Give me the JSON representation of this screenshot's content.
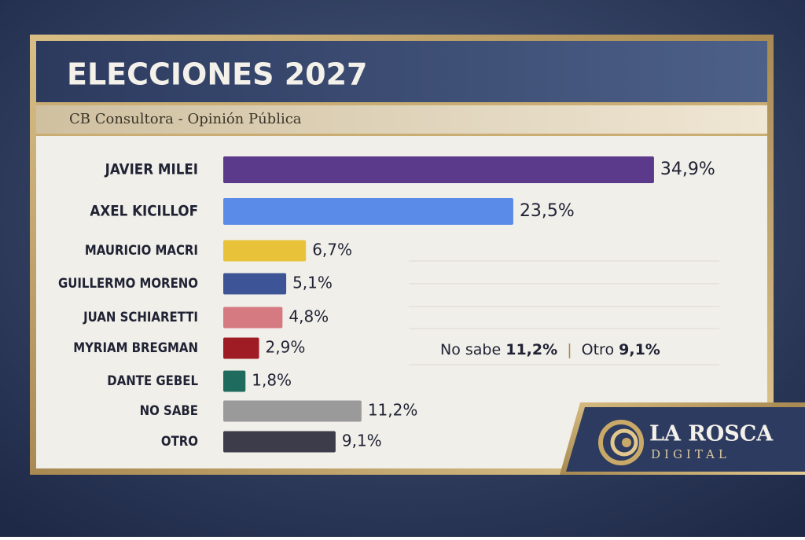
{
  "chart_data": {
    "type": "bar",
    "orientation": "horizontal",
    "title": "ELECCIONES 2027",
    "subtitle": "CB Consultora - Opinión Pública",
    "categories": [
      "JAVIER MILEI",
      "AXEL KICILLOF",
      "MAURICIO MACRI",
      "GUILLERMO MORENO",
      "JUAN SCHIARETTI",
      "MYRIAM BREGMAN",
      "DANTE GEBEL",
      "NO SABE",
      "OTRO"
    ],
    "values": [
      34.9,
      23.5,
      6.7,
      5.1,
      4.8,
      2.9,
      1.8,
      11.2,
      9.1
    ],
    "value_labels": [
      "34,9%",
      "23,5%",
      "6,7%",
      "5,1%",
      "4,8%",
      "2,9%",
      "1,8%",
      "11,2%",
      "9,1%"
    ],
    "colors": [
      "#5b3a8c",
      "#5b8be8",
      "#e8c33a",
      "#3d5596",
      "#d67a82",
      "#a01c24",
      "#1f6b5e",
      "#9a9a9a",
      "#3d3c4a"
    ],
    "annotation_labels": [
      "No sabe",
      "Otro"
    ],
    "brand": {
      "name": "LA ROSCA",
      "tagline": "DIGITAL"
    }
  }
}
